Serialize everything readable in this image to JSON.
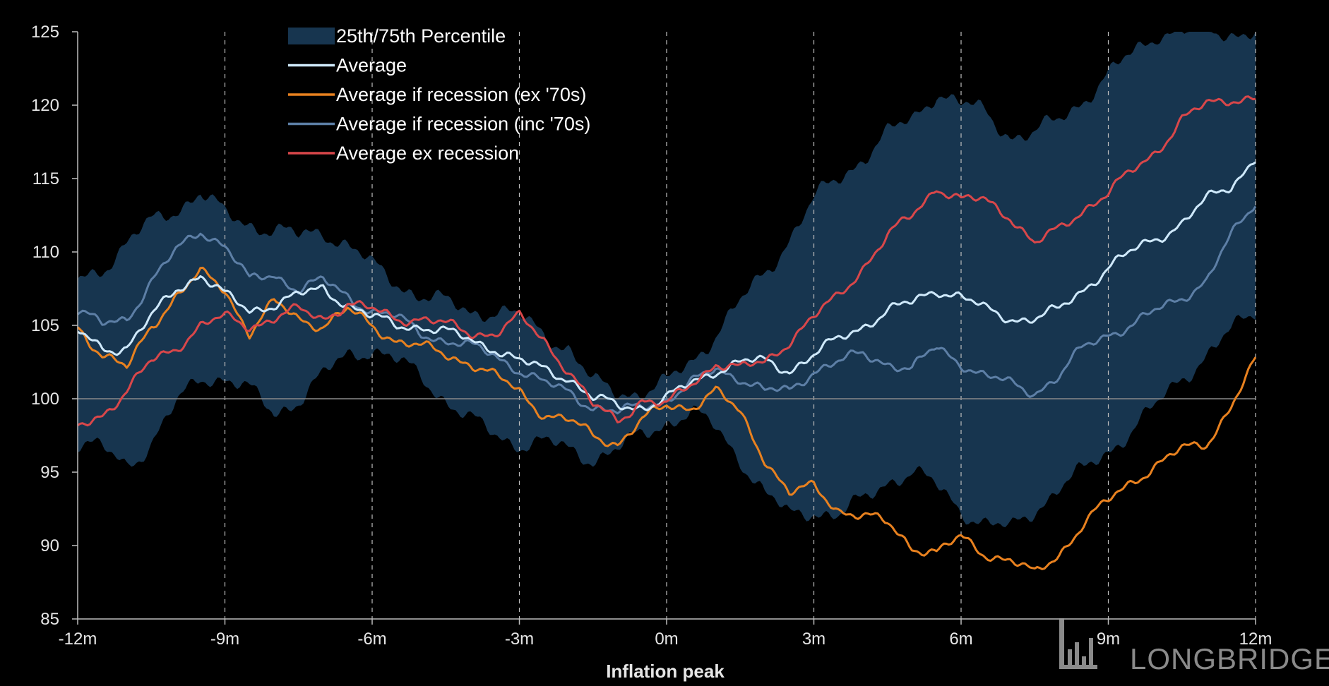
{
  "chart_data": {
    "type": "line",
    "title": "",
    "xlabel": "Inflation peak",
    "ylabel": "",
    "x_ticks": [
      "-12m",
      "-9m",
      "-6m",
      "-3m",
      "0m",
      "3m",
      "6m",
      "9m",
      "12m"
    ],
    "x_tick_values": [
      -12,
      -9,
      -6,
      -3,
      0,
      3,
      6,
      9,
      12
    ],
    "xlim": [
      -12,
      12
    ],
    "ylim": [
      85,
      125
    ],
    "y_ticks": [
      85,
      90,
      95,
      100,
      105,
      110,
      115,
      120,
      125
    ],
    "baseline": 100,
    "vertical_gridlines": "dashed",
    "legend_position": "top-left",
    "x": [
      -12,
      -11.5,
      -11,
      -10.5,
      -10,
      -9.5,
      -9,
      -8.5,
      -8,
      -7.5,
      -7,
      -6.5,
      -6,
      -5.5,
      -5,
      -4.5,
      -4,
      -3.5,
      -3,
      -2.5,
      -2,
      -1.5,
      -1,
      -0.5,
      0,
      0.5,
      1,
      1.5,
      2,
      2.5,
      3,
      3.5,
      4,
      4.5,
      5,
      5.5,
      6,
      6.5,
      7,
      7.5,
      8,
      8.5,
      9,
      9.5,
      10,
      10.5,
      11,
      11.5,
      12
    ],
    "band": {
      "name": "25th/75th Percentile",
      "color": "#17354f",
      "upper": [
        108,
        109,
        110.5,
        112,
        113,
        114,
        112.5,
        112,
        111.5,
        111,
        111.5,
        110.5,
        109,
        108,
        107,
        106.5,
        106,
        106,
        105.5,
        104.5,
        103.5,
        101,
        100.5,
        100.5,
        101,
        102.5,
        104.5,
        106.5,
        108.5,
        111,
        113.5,
        115,
        116.5,
        118,
        119,
        121,
        120,
        119.5,
        118,
        118,
        119,
        120.5,
        122,
        123.5,
        125,
        125,
        125,
        125,
        125
      ],
      "lower": [
        97,
        96.5,
        95.5,
        97,
        99.5,
        101.5,
        101.5,
        100.5,
        99,
        100,
        101.5,
        103,
        103.5,
        102.5,
        101.5,
        100,
        98.5,
        97.5,
        97,
        97,
        96.5,
        96,
        96.5,
        97.5,
        98.5,
        99,
        98,
        96,
        93.5,
        92,
        92.5,
        92,
        93,
        94.5,
        95,
        94,
        92.5,
        91.5,
        91,
        92.5,
        94,
        95,
        96.5,
        98,
        99.5,
        101.5,
        103,
        104.5,
        106
      ]
    },
    "series": [
      {
        "name": "Average",
        "color": "#cfe9fb",
        "values": [
          104.5,
          103.5,
          103.5,
          105.5,
          107.5,
          108.5,
          107,
          106,
          106.5,
          107,
          107.5,
          106.5,
          105.5,
          105,
          105,
          104.5,
          104,
          103.5,
          102.5,
          102,
          101.5,
          100,
          99.5,
          99.5,
          100,
          101,
          102,
          102.5,
          102.5,
          102,
          103,
          104,
          105,
          106,
          106.5,
          107.5,
          107,
          106,
          105.5,
          105.5,
          106,
          107.5,
          109,
          110,
          111,
          112,
          113.5,
          114.5,
          116.5
        ]
      },
      {
        "name": "Average if recession (ex '70s)",
        "color": "#e8811f",
        "values": [
          105,
          103,
          102,
          105,
          107,
          108.5,
          107.5,
          104.5,
          106.5,
          105.5,
          105,
          106,
          105,
          104,
          103.5,
          103,
          102.5,
          101.5,
          100.5,
          99,
          98.5,
          97.5,
          97,
          98.5,
          99.5,
          99.5,
          100.5,
          99,
          96,
          93.5,
          94,
          92.5,
          92,
          91.5,
          90,
          89.5,
          90.5,
          89.5,
          89,
          88,
          89.5,
          91.5,
          93,
          94.5,
          95.5,
          96.5,
          97,
          99.5,
          102.5
        ]
      },
      {
        "name": "Average if recession (inc '70s)",
        "color": "#5d7fa6",
        "values": [
          106,
          105,
          105.5,
          108,
          110,
          111.5,
          110.5,
          108,
          108.5,
          107.5,
          108,
          107,
          106,
          105.5,
          104.5,
          104,
          103.5,
          103,
          102,
          101,
          100.5,
          99.5,
          99,
          99.5,
          100,
          101,
          102,
          101.5,
          100.5,
          100.5,
          102,
          102.5,
          103,
          102.5,
          102,
          103.5,
          102.5,
          101.5,
          101,
          100.5,
          101.5,
          103.5,
          104.5,
          105,
          106,
          107,
          108,
          111,
          113.5
        ]
      },
      {
        "name": "Average ex recession",
        "color": "#d9474a",
        "values": [
          98,
          99,
          100.5,
          102.5,
          103.5,
          105,
          105.5,
          105,
          105.5,
          106,
          105.5,
          106.5,
          106,
          105.5,
          105.5,
          105,
          104.5,
          104.5,
          105.5,
          104,
          102,
          99.5,
          98.5,
          100,
          99.5,
          101,
          102.5,
          102,
          102.5,
          104,
          105.5,
          107,
          109,
          111,
          112.5,
          114.5,
          113.5,
          113.5,
          112.5,
          110.5,
          111.5,
          113,
          114,
          115.5,
          117,
          119,
          120,
          120.5,
          120.5
        ]
      }
    ]
  },
  "watermark": {
    "text": "LONGBRIDGE",
    "icon": "longbridge-logo-icon"
  }
}
